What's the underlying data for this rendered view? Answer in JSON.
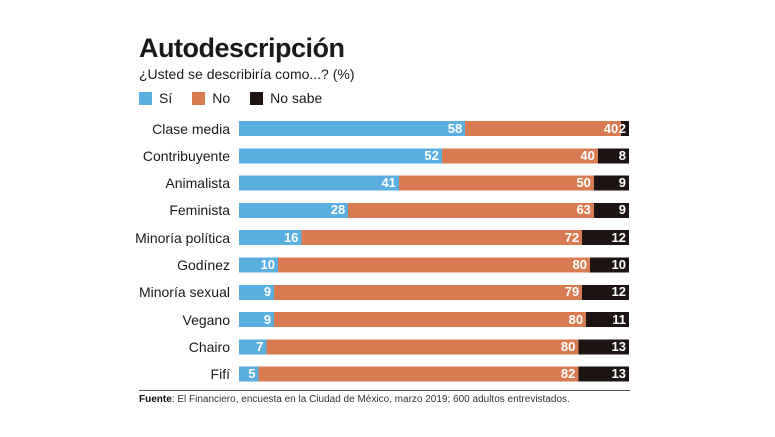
{
  "title": "Autodescripción",
  "subtitle": "¿Usted se describiría como...? (%)",
  "legend": [
    {
      "label": "Sí",
      "color": "#5aaee0"
    },
    {
      "label": "No",
      "color": "#d87a52"
    },
    {
      "label": "No sabe",
      "color": "#1e1414"
    }
  ],
  "source": {
    "label": "Fuente",
    "text": ": El Financiero, encuesta en la Ciudad de México, marzo 2019; 600 adultos entrevistados."
  },
  "chart_data": {
    "type": "bar",
    "orientation": "horizontal",
    "stacked": true,
    "title": "Autodescripción",
    "subtitle": "¿Usted se describiría como...? (%)",
    "categories": [
      "Clase media",
      "Contribuyente",
      "Animalista",
      "Feminista",
      "Minoría política",
      "Godínez",
      "Minoría sexual",
      "Vegano",
      "Chairo",
      "Fifí"
    ],
    "series": [
      {
        "name": "Sí",
        "color": "#5aaee0",
        "values": [
          58,
          52,
          41,
          28,
          16,
          10,
          9,
          9,
          7,
          5
        ]
      },
      {
        "name": "No",
        "color": "#d87a52",
        "values": [
          40,
          40,
          50,
          63,
          72,
          80,
          79,
          80,
          80,
          82
        ]
      },
      {
        "name": "No sabe",
        "color": "#1e1414",
        "values": [
          2,
          8,
          9,
          9,
          12,
          10,
          12,
          11,
          13,
          13
        ]
      }
    ],
    "xlim": [
      0,
      100
    ],
    "legend_position": "top-left",
    "data_labels": true,
    "grid": false
  }
}
